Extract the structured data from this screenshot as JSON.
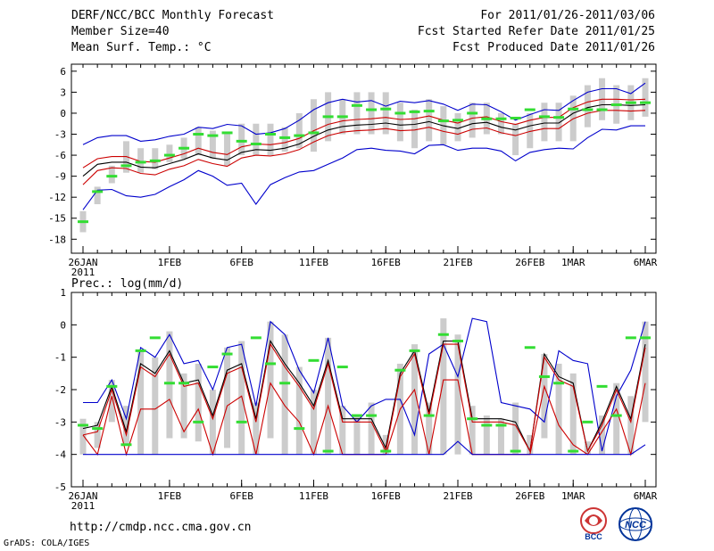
{
  "header": {
    "title": "DERF/NCC/BCC Monthly Forecast",
    "member_size": "Member Size=40",
    "variable": "Mean Surf. Temp.: °C",
    "period": "For 2011/01/26-2011/03/06",
    "fcst_started": "Fcst Started Refer Date 2011/01/25",
    "fcst_produced": "Fcst Produced Date 2011/01/26"
  },
  "footer": {
    "url": "http://cmdp.ncc.cma.gov.cn",
    "credit": "GrADS: COLA/IGES",
    "logo_bcc_text": "BCC",
    "logo_ncc_text": "NCC"
  },
  "colors": {
    "box": "#cccccc",
    "observed": "#33dd33",
    "ensemble_mean": "#000000",
    "spread_inner": "#cc0000",
    "spread_outer": "#0000cc"
  },
  "chart_data": [
    {
      "type": "line",
      "title": "Mean Surf. Temp.: °C",
      "xlabel": "",
      "ylabel": "°C",
      "ylim": [
        -20,
        7
      ],
      "yticks": [
        6,
        3,
        0,
        -3,
        -6,
        -9,
        -12,
        -15,
        -18
      ],
      "x_tick_labels": [
        "26JAN",
        "1FEB",
        "6FEB",
        "11FEB",
        "16FEB",
        "21FEB",
        "26FEB",
        "1MAR",
        "6MAR"
      ],
      "x_tick_days": [
        0,
        6,
        11,
        16,
        21,
        26,
        31,
        34,
        39
      ],
      "x_sub_label": "2011",
      "days": 40,
      "series": [
        {
          "name": "blue_max",
          "values": [
            -4.5,
            -3.5,
            -3.2,
            -3.2,
            -4.0,
            -3.8,
            -3.3,
            -3.0,
            -2.0,
            -2.2,
            -1.6,
            -1.8,
            -3.0,
            -2.8,
            -2.2,
            -1.0,
            0.5,
            1.5,
            2.0,
            1.6,
            1.8,
            1.0,
            1.7,
            1.5,
            1.8,
            1.3,
            0.4,
            1.3,
            1.2,
            0.2,
            -1.0,
            -0.2,
            0.5,
            0.4,
            1.8,
            3.0,
            3.5,
            3.5,
            2.8,
            4.3
          ]
        },
        {
          "name": "red_upper",
          "values": [
            -7.8,
            -6.5,
            -6.2,
            -6.2,
            -6.9,
            -7.0,
            -6.4,
            -5.8,
            -5.0,
            -5.6,
            -5.9,
            -4.8,
            -4.4,
            -4.5,
            -4.2,
            -3.6,
            -2.5,
            -1.6,
            -1.1,
            -0.9,
            -0.8,
            -0.6,
            -0.9,
            -0.8,
            -0.4,
            -1.0,
            -1.4,
            -0.7,
            -0.5,
            -1.2,
            -1.6,
            -1.0,
            -0.6,
            -0.6,
            0.8,
            1.6,
            2.0,
            2.0,
            1.9,
            2.0
          ]
        },
        {
          "name": "ensemble_mean",
          "values": [
            -9.0,
            -7.3,
            -7.0,
            -7.0,
            -7.7,
            -7.8,
            -7.2,
            -6.6,
            -5.8,
            -6.4,
            -6.7,
            -5.6,
            -5.2,
            -5.3,
            -5.0,
            -4.4,
            -3.3,
            -2.4,
            -1.9,
            -1.7,
            -1.6,
            -1.4,
            -1.7,
            -1.6,
            -1.2,
            -1.8,
            -2.2,
            -1.5,
            -1.3,
            -2.0,
            -2.4,
            -1.8,
            -1.4,
            -1.4,
            0.0,
            0.8,
            1.2,
            1.2,
            1.1,
            1.2
          ]
        },
        {
          "name": "red_lower",
          "values": [
            -10.2,
            -8.2,
            -7.8,
            -7.9,
            -8.6,
            -8.8,
            -8.0,
            -7.5,
            -6.6,
            -7.2,
            -7.6,
            -6.4,
            -6.0,
            -6.1,
            -5.8,
            -5.2,
            -4.1,
            -3.2,
            -2.7,
            -2.5,
            -2.4,
            -2.2,
            -2.5,
            -2.4,
            -2.0,
            -2.6,
            -3.0,
            -2.3,
            -2.1,
            -2.8,
            -3.2,
            -2.6,
            -2.2,
            -2.2,
            -0.8,
            0.0,
            0.4,
            0.4,
            0.3,
            0.4
          ]
        },
        {
          "name": "blue_min",
          "values": [
            -13.8,
            -11.0,
            -10.9,
            -11.8,
            -12.0,
            -11.6,
            -10.5,
            -9.5,
            -8.2,
            -9.0,
            -10.3,
            -10.0,
            -13.0,
            -10.2,
            -9.2,
            -8.4,
            -8.2,
            -7.3,
            -6.4,
            -5.2,
            -5.0,
            -5.3,
            -5.4,
            -5.8,
            -4.6,
            -4.5,
            -5.3,
            -5.0,
            -5.0,
            -5.4,
            -6.8,
            -5.6,
            -5.2,
            -5.0,
            -5.1,
            -3.5,
            -2.3,
            -2.4,
            -1.8,
            -1.8
          ]
        },
        {
          "name": "observed",
          "values": [
            -15.5,
            -11.2,
            -9.0,
            -7.5,
            -7.0,
            -6.8,
            -6.0,
            -5.0,
            -3.0,
            -3.2,
            -2.8,
            -4.0,
            -4.4,
            -3.0,
            -3.5,
            -3.2,
            -2.8,
            -0.5,
            -0.5,
            1.1,
            0.5,
            0.6,
            0.0,
            0.2,
            0.3,
            -1.1,
            -1.0,
            0.0,
            -0.8,
            -0.8,
            -0.7,
            0.5,
            -0.5,
            -0.6,
            0.6,
            0.5,
            0.5,
            1.2,
            1.5,
            1.5
          ]
        }
      ],
      "box_range": [
        [
          -17,
          -14
        ],
        [
          -13,
          -10.5
        ],
        [
          -10,
          -7.5
        ],
        [
          -8.5,
          -4
        ],
        [
          -8.5,
          -5
        ],
        [
          -8,
          -5
        ],
        [
          -7,
          -4.5
        ],
        [
          -6.5,
          -3.5
        ],
        [
          -6,
          -2
        ],
        [
          -6.5,
          -2.5
        ],
        [
          -7.5,
          -3
        ],
        [
          -6,
          -1.5
        ],
        [
          -6,
          -1.5
        ],
        [
          -6,
          -1.5
        ],
        [
          -5.5,
          -2
        ],
        [
          -5,
          0
        ],
        [
          -5.5,
          2
        ],
        [
          -4,
          3
        ],
        [
          -3,
          2
        ],
        [
          -3,
          3
        ],
        [
          -3,
          3
        ],
        [
          -3,
          3
        ],
        [
          -4,
          1.5
        ],
        [
          -5,
          0.5
        ],
        [
          -4,
          2
        ],
        [
          -4.5,
          1
        ],
        [
          -4,
          0
        ],
        [
          -3.5,
          1.5
        ],
        [
          -3,
          1.5
        ],
        [
          -3,
          0
        ],
        [
          -6,
          -1.5
        ],
        [
          -5,
          0
        ],
        [
          -4,
          1.5
        ],
        [
          -4,
          1.5
        ],
        [
          -4,
          2.5
        ],
        [
          -2,
          4
        ],
        [
          -1,
          5
        ],
        [
          -1.5,
          4
        ],
        [
          -1,
          4
        ],
        [
          -0.5,
          5
        ]
      ]
    },
    {
      "type": "line",
      "title": "Prec.: log(mm/d)",
      "xlabel": "",
      "ylabel": "log(mm/d)",
      "ylim": [
        -5,
        1
      ],
      "yticks": [
        1,
        0,
        -1,
        -2,
        -3,
        -4,
        -5
      ],
      "x_tick_labels": [
        "26JAN",
        "1FEB",
        "6FEB",
        "11FEB",
        "16FEB",
        "21FEB",
        "26FEB",
        "1MAR",
        "6MAR"
      ],
      "x_tick_days": [
        0,
        6,
        11,
        16,
        21,
        26,
        31,
        34,
        39
      ],
      "x_sub_label": "2011",
      "days": 40,
      "series": [
        {
          "name": "blue_max",
          "values": [
            -2.4,
            -2.4,
            -1.7,
            -2.9,
            -0.7,
            -1.0,
            -0.3,
            -1.2,
            -1.1,
            -2.0,
            -0.7,
            -0.6,
            -2.5,
            0.1,
            -0.3,
            -1.4,
            -2.1,
            -0.4,
            -2.5,
            -3.0,
            -2.5,
            -2.3,
            -2.3,
            -3.4,
            -0.9,
            -0.6,
            -1.6,
            0.2,
            0.1,
            -2.4,
            -2.5,
            -2.6,
            -3.0,
            -0.8,
            -1.1,
            -1.2,
            -3.9,
            -2.2,
            -1.4,
            0.1
          ]
        },
        {
          "name": "ensemble_mean",
          "values": [
            -3.2,
            -3.1,
            -1.9,
            -3.3,
            -1.2,
            -1.5,
            -0.8,
            -1.8,
            -1.7,
            -2.8,
            -1.4,
            -1.2,
            -2.9,
            -0.5,
            -1.2,
            -1.8,
            -2.5,
            -1.1,
            -2.9,
            -2.9,
            -2.9,
            -3.8,
            -1.5,
            -0.8,
            -2.7,
            -0.5,
            -0.5,
            -2.9,
            -2.9,
            -2.9,
            -3.0,
            -3.9,
            -0.9,
            -1.6,
            -1.8,
            -3.9,
            -3.0,
            -1.9,
            -2.9,
            -0.6
          ]
        },
        {
          "name": "red_mean",
          "values": [
            -3.4,
            -3.3,
            -2.0,
            -3.4,
            -1.3,
            -1.6,
            -0.9,
            -1.9,
            -1.8,
            -2.9,
            -1.5,
            -1.3,
            -3.0,
            -0.6,
            -1.3,
            -1.9,
            -2.6,
            -1.2,
            -3.0,
            -3.0,
            -3.0,
            -3.9,
            -1.6,
            -0.9,
            -2.8,
            -0.6,
            -0.6,
            -3.0,
            -3.0,
            -3.0,
            -3.1,
            -3.9,
            -1.0,
            -1.7,
            -1.9,
            -3.9,
            -3.1,
            -2.0,
            -3.0,
            -0.7
          ]
        },
        {
          "name": "red_lower",
          "values": [
            -3.4,
            -4.0,
            -2.2,
            -4.0,
            -2.6,
            -2.6,
            -2.3,
            -3.3,
            -2.6,
            -4.0,
            -2.5,
            -2.2,
            -4.0,
            -1.8,
            -2.5,
            -3.0,
            -4.0,
            -2.5,
            -4.0,
            -4.0,
            -4.0,
            -4.0,
            -2.6,
            -2.0,
            -4.0,
            -1.7,
            -1.7,
            -4.0,
            -4.0,
            -4.0,
            -4.0,
            -4.0,
            -1.9,
            -3.1,
            -3.7,
            -4.0,
            -3.3,
            -2.6,
            -4.0,
            -1.8
          ]
        },
        {
          "name": "blue_min",
          "values": [
            -4.0,
            -4.0,
            -4.0,
            -4.0,
            -4.0,
            -4.0,
            -4.0,
            -4.0,
            -4.0,
            -4.0,
            -4.0,
            -4.0,
            -4.0,
            -4.0,
            -4.0,
            -4.0,
            -4.0,
            -4.0,
            -4.0,
            -4.0,
            -4.0,
            -4.0,
            -4.0,
            -4.0,
            -4.0,
            -4.0,
            -3.6,
            -4.0,
            -4.0,
            -4.0,
            -4.0,
            -4.0,
            -4.0,
            -4.0,
            -4.0,
            -4.0,
            -4.0,
            -4.0,
            -4.0,
            -3.7
          ]
        },
        {
          "name": "observed",
          "values": [
            -3.1,
            -3.2,
            -1.9,
            -3.7,
            -0.8,
            -0.4,
            -1.8,
            -1.8,
            -3.0,
            -1.3,
            -0.9,
            -3.0,
            -0.4,
            -1.2,
            -1.8,
            -3.2,
            -1.1,
            -3.9,
            -1.3,
            -2.8,
            -2.8,
            -3.9,
            -1.4,
            -0.8,
            -2.8,
            -0.3,
            -0.5,
            -2.9,
            -3.1,
            -3.1,
            -3.9,
            -0.7,
            -1.6,
            -1.8,
            -3.9,
            -3.0,
            -1.9,
            -2.8,
            -0.4,
            -0.4
          ]
        }
      ],
      "box_range": [
        [
          -4,
          -2.9
        ],
        [
          -3.8,
          -3.0
        ],
        [
          -3.0,
          -1.7
        ],
        [
          -3.7,
          -2.5
        ],
        [
          -4,
          -0.8
        ],
        [
          -4,
          -1.0
        ],
        [
          -3.5,
          -0.2
        ],
        [
          -3.5,
          -1.5
        ],
        [
          -3.6,
          -1.2
        ],
        [
          -4,
          -2.0
        ],
        [
          -3.8,
          -0.7
        ],
        [
          -4,
          -0.5
        ],
        [
          -4,
          -2.4
        ],
        [
          -3.5,
          0.1
        ],
        [
          -4,
          -0.3
        ],
        [
          -4,
          -1.3
        ],
        [
          -4,
          -2.0
        ],
        [
          -4,
          -0.4
        ],
        [
          -4,
          -2.5
        ],
        [
          -4,
          -2.8
        ],
        [
          -4,
          -2.4
        ],
        [
          -4,
          -3.4
        ],
        [
          -4,
          -1.2
        ],
        [
          -4,
          -0.6
        ],
        [
          -4,
          -2.4
        ],
        [
          -4,
          0.2
        ],
        [
          -4,
          -0.3
        ],
        [
          -4,
          -2.5
        ],
        [
          -4,
          -2.8
        ],
        [
          -4,
          -2.9
        ],
        [
          -4,
          -2.4
        ],
        [
          -4,
          -3.4
        ],
        [
          -3.5,
          -0.9
        ],
        [
          -4,
          -1.2
        ],
        [
          -4,
          -1.5
        ],
        [
          -4,
          -3.6
        ],
        [
          -4,
          -2.8
        ],
        [
          -4,
          -1.8
        ],
        [
          -4,
          -2.2
        ],
        [
          -3.0,
          0.1
        ]
      ]
    }
  ]
}
